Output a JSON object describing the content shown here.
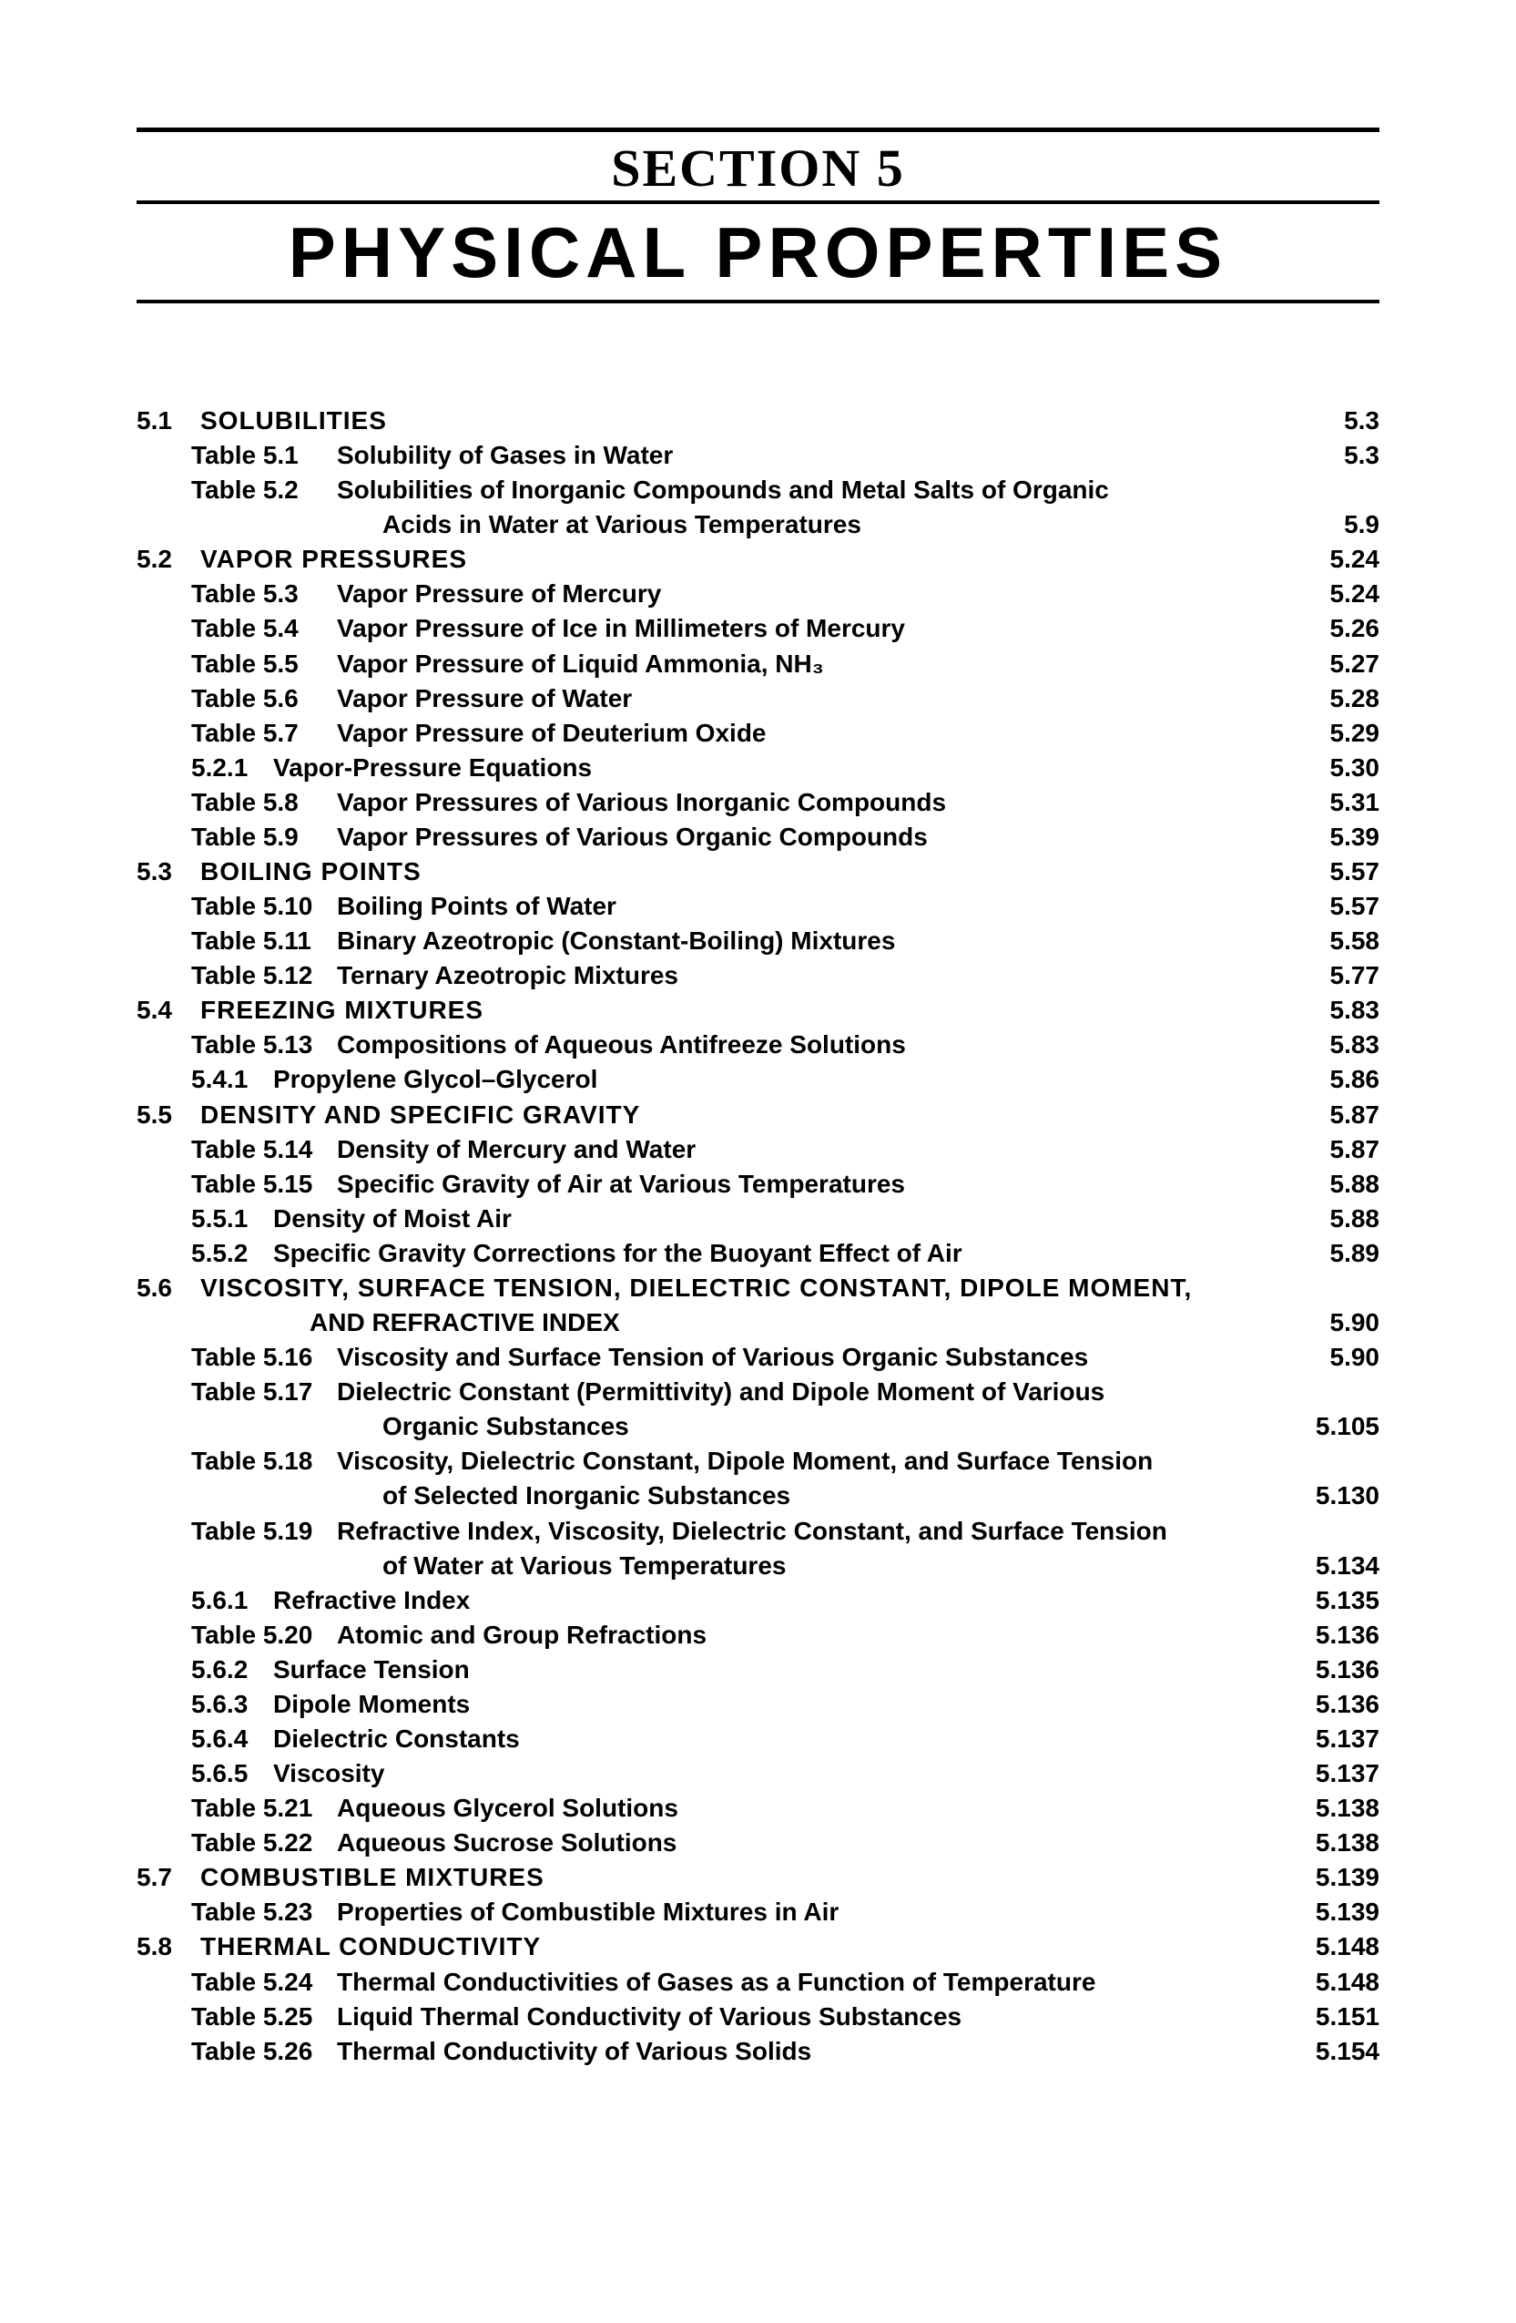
{
  "header": {
    "section_label": "SECTION  5",
    "section_title": "PHYSICAL  PROPERTIES"
  },
  "toc": [
    {
      "lvl": 0,
      "num": "5.1",
      "title": "SOLUBILITIES",
      "page": "5.3"
    },
    {
      "lvl": 2,
      "num": "Table 5.1",
      "title": "Solubility of Gases in Water",
      "page": "5.3"
    },
    {
      "lvl": 2,
      "num": "Table 5.2",
      "title": "Solubilities of Inorganic Compounds and Metal Salts of Organic",
      "page": ""
    },
    {
      "lvl": "2c",
      "title": "Acids in Water at Various Temperatures",
      "page": "5.9"
    },
    {
      "lvl": 0,
      "num": "5.2",
      "title": "VAPOR  PRESSURES",
      "page": "5.24"
    },
    {
      "lvl": 2,
      "num": "Table 5.3",
      "title": "Vapor Pressure of Mercury",
      "page": "5.24"
    },
    {
      "lvl": 2,
      "num": "Table 5.4",
      "title": "Vapor Pressure of Ice in Millimeters of Mercury",
      "page": "5.26"
    },
    {
      "lvl": 2,
      "num": "Table 5.5",
      "title": "Vapor Pressure of Liquid Ammonia, NH₃",
      "page": "5.27"
    },
    {
      "lvl": 2,
      "num": "Table 5.6",
      "title": "Vapor Pressure of Water",
      "page": "5.28"
    },
    {
      "lvl": 2,
      "num": "Table 5.7",
      "title": "Vapor Pressure of Deuterium Oxide",
      "page": "5.29"
    },
    {
      "lvl": 1,
      "num": "5.2.1",
      "title": "Vapor-Pressure Equations",
      "page": "5.30"
    },
    {
      "lvl": 2,
      "num": "Table 5.8",
      "title": "Vapor Pressures of Various Inorganic Compounds",
      "page": "5.31"
    },
    {
      "lvl": 2,
      "num": "Table 5.9",
      "title": "Vapor Pressures of Various Organic Compounds",
      "page": "5.39"
    },
    {
      "lvl": 0,
      "num": "5.3",
      "title": "BOILING  POINTS",
      "page": "5.57"
    },
    {
      "lvl": 2,
      "num": "Table 5.10",
      "title": "Boiling Points of Water",
      "page": "5.57"
    },
    {
      "lvl": 2,
      "num": "Table 5.11",
      "title": "Binary Azeotropic (Constant-Boiling) Mixtures",
      "page": "5.58"
    },
    {
      "lvl": 2,
      "num": "Table 5.12",
      "title": "Ternary Azeotropic Mixtures",
      "page": "5.77"
    },
    {
      "lvl": 0,
      "num": "5.4",
      "title": "FREEZING  MIXTURES",
      "page": "5.83"
    },
    {
      "lvl": 2,
      "num": "Table 5.13",
      "title": "Compositions of Aqueous Antifreeze Solutions",
      "page": "5.83"
    },
    {
      "lvl": 1,
      "num": "5.4.1",
      "title": "Propylene Glycol–Glycerol",
      "page": "5.86"
    },
    {
      "lvl": 0,
      "num": "5.5",
      "title": "DENSITY  AND  SPECIFIC  GRAVITY",
      "page": "5.87"
    },
    {
      "lvl": 2,
      "num": "Table 5.14",
      "title": "Density of Mercury and Water",
      "page": "5.87"
    },
    {
      "lvl": 2,
      "num": "Table 5.15",
      "title": "Specific Gravity of Air at Various Temperatures",
      "page": "5.88"
    },
    {
      "lvl": 1,
      "num": "5.5.1",
      "title": "Density of Moist Air",
      "page": "5.88"
    },
    {
      "lvl": 1,
      "num": "5.5.2",
      "title": "Specific Gravity Corrections for the Buoyant Effect of Air",
      "page": "5.89"
    },
    {
      "lvl": 0,
      "num": "5.6",
      "title": "VISCOSITY,  SURFACE  TENSION,  DIELECTRIC  CONSTANT,  DIPOLE  MOMENT,",
      "page": ""
    },
    {
      "lvl": "0c",
      "title": "AND  REFRACTIVE  INDEX",
      "page": "5.90"
    },
    {
      "lvl": 2,
      "num": "Table 5.16",
      "title": "Viscosity and Surface Tension of Various Organic Substances",
      "page": "5.90"
    },
    {
      "lvl": 2,
      "num": "Table 5.17",
      "title": "Dielectric Constant (Permittivity) and Dipole Moment of Various",
      "page": ""
    },
    {
      "lvl": "2c",
      "title": "Organic Substances",
      "page": "5.105"
    },
    {
      "lvl": 2,
      "num": "Table 5.18",
      "title": "Viscosity, Dielectric Constant, Dipole Moment, and Surface Tension",
      "page": ""
    },
    {
      "lvl": "2c",
      "title": "of Selected Inorganic Substances",
      "page": "5.130"
    },
    {
      "lvl": 2,
      "num": "Table 5.19",
      "title": "Refractive Index, Viscosity, Dielectric Constant, and Surface Tension",
      "page": ""
    },
    {
      "lvl": "2c",
      "title": "of Water at Various Temperatures",
      "page": "5.134"
    },
    {
      "lvl": 1,
      "num": "5.6.1",
      "title": "Refractive Index",
      "page": "5.135"
    },
    {
      "lvl": 2,
      "num": "Table 5.20",
      "title": "Atomic and Group Refractions",
      "page": "5.136"
    },
    {
      "lvl": 1,
      "num": "5.6.2",
      "title": "Surface Tension",
      "page": "5.136"
    },
    {
      "lvl": 1,
      "num": "5.6.3",
      "title": "Dipole Moments",
      "page": "5.136"
    },
    {
      "lvl": 1,
      "num": "5.6.4",
      "title": "Dielectric Constants",
      "page": "5.137"
    },
    {
      "lvl": 1,
      "num": "5.6.5",
      "title": "Viscosity",
      "page": "5.137"
    },
    {
      "lvl": 2,
      "num": "Table 5.21",
      "title": "Aqueous Glycerol Solutions",
      "page": "5.138"
    },
    {
      "lvl": 2,
      "num": "Table 5.22",
      "title": "Aqueous Sucrose Solutions",
      "page": "5.138"
    },
    {
      "lvl": 0,
      "num": "5.7",
      "title": "COMBUSTIBLE  MIXTURES",
      "page": "5.139"
    },
    {
      "lvl": 2,
      "num": "Table 5.23",
      "title": "Properties of Combustible Mixtures in Air",
      "page": "5.139"
    },
    {
      "lvl": 0,
      "num": "5.8",
      "title": "THERMAL  CONDUCTIVITY",
      "page": "5.148"
    },
    {
      "lvl": 2,
      "num": "Table 5.24",
      "title": "Thermal Conductivities of Gases as a Function of Temperature",
      "page": "5.148"
    },
    {
      "lvl": 2,
      "num": "Table 5.25",
      "title": "Liquid Thermal Conductivity of Various Substances",
      "page": "5.151"
    },
    {
      "lvl": 2,
      "num": "Table 5.26",
      "title": "Thermal Conductivity of Various Solids",
      "page": "5.154"
    }
  ]
}
